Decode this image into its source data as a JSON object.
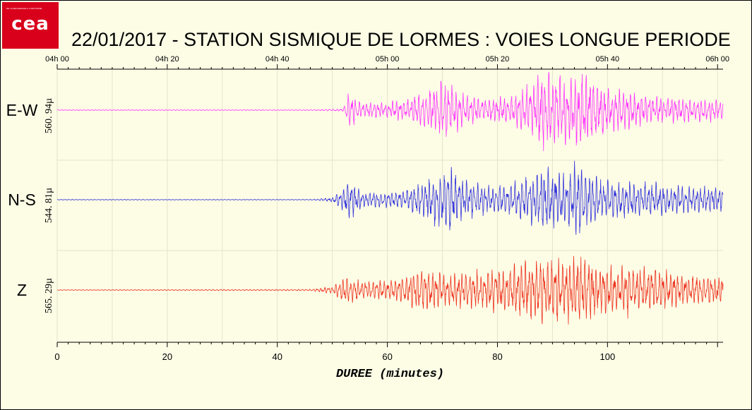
{
  "logo": {
    "text": "cea",
    "tagline": "DE LA RECHERCHE À L'INDUSTRIE"
  },
  "chart_data": {
    "type": "line",
    "title": "22/01/2017  -  STATION SISMIQUE DE LORMES : VOIES LONGUE PERIODE",
    "xlabel": "DUREE (minutes)",
    "xlim": [
      0,
      121
    ],
    "x_ticks": [
      0,
      20,
      40,
      60,
      80,
      100
    ],
    "top_time_ticks": [
      "04h 00",
      "04h 20",
      "04h 40",
      "05h 00",
      "05h 20",
      "05h 40",
      "06h 00"
    ],
    "grid": true,
    "series": [
      {
        "name": "E-W",
        "scale": "560. 94µ",
        "color": "#ff33ff",
        "arrival_min": 52,
        "envelope": [
          [
            0,
            0.01
          ],
          [
            46,
            0.01
          ],
          [
            52,
            0.03
          ],
          [
            53,
            0.5
          ],
          [
            55,
            0.2
          ],
          [
            60,
            0.2
          ],
          [
            64,
            0.3
          ],
          [
            69,
            0.65
          ],
          [
            71,
            0.75
          ],
          [
            74,
            0.4
          ],
          [
            78,
            0.3
          ],
          [
            82,
            0.35
          ],
          [
            86,
            0.7
          ],
          [
            88,
            1.0
          ],
          [
            92,
            0.85
          ],
          [
            96,
            1.0
          ],
          [
            100,
            0.6
          ],
          [
            105,
            0.45
          ],
          [
            110,
            0.35
          ],
          [
            115,
            0.3
          ],
          [
            121,
            0.28
          ]
        ]
      },
      {
        "name": "N-S",
        "scale": "544. 81µ",
        "color": "#3333dd",
        "arrival_min": 52,
        "envelope": [
          [
            0,
            0.01
          ],
          [
            46,
            0.01
          ],
          [
            50,
            0.05
          ],
          [
            53,
            0.5
          ],
          [
            56,
            0.2
          ],
          [
            60,
            0.2
          ],
          [
            64,
            0.3
          ],
          [
            69,
            0.65
          ],
          [
            71,
            0.9
          ],
          [
            74,
            0.5
          ],
          [
            78,
            0.35
          ],
          [
            82,
            0.4
          ],
          [
            86,
            0.6
          ],
          [
            89,
            0.8
          ],
          [
            92,
            0.7
          ],
          [
            95,
            1.0
          ],
          [
            99,
            0.55
          ],
          [
            104,
            0.5
          ],
          [
            110,
            0.4
          ],
          [
            115,
            0.35
          ],
          [
            121,
            0.3
          ]
        ]
      },
      {
        "name": "Z",
        "scale": "565. 29µ",
        "color": "#ee3322",
        "arrival_min": 52,
        "envelope": [
          [
            0,
            0.01
          ],
          [
            46,
            0.02
          ],
          [
            50,
            0.1
          ],
          [
            52,
            0.35
          ],
          [
            56,
            0.25
          ],
          [
            60,
            0.25
          ],
          [
            64,
            0.4
          ],
          [
            66,
            0.55
          ],
          [
            70,
            0.45
          ],
          [
            74,
            0.45
          ],
          [
            78,
            0.5
          ],
          [
            84,
            0.7
          ],
          [
            88,
            0.85
          ],
          [
            92,
            0.75
          ],
          [
            95,
            1.0
          ],
          [
            99,
            0.6
          ],
          [
            104,
            0.65
          ],
          [
            110,
            0.5
          ],
          [
            115,
            0.4
          ],
          [
            121,
            0.35
          ]
        ]
      }
    ]
  }
}
